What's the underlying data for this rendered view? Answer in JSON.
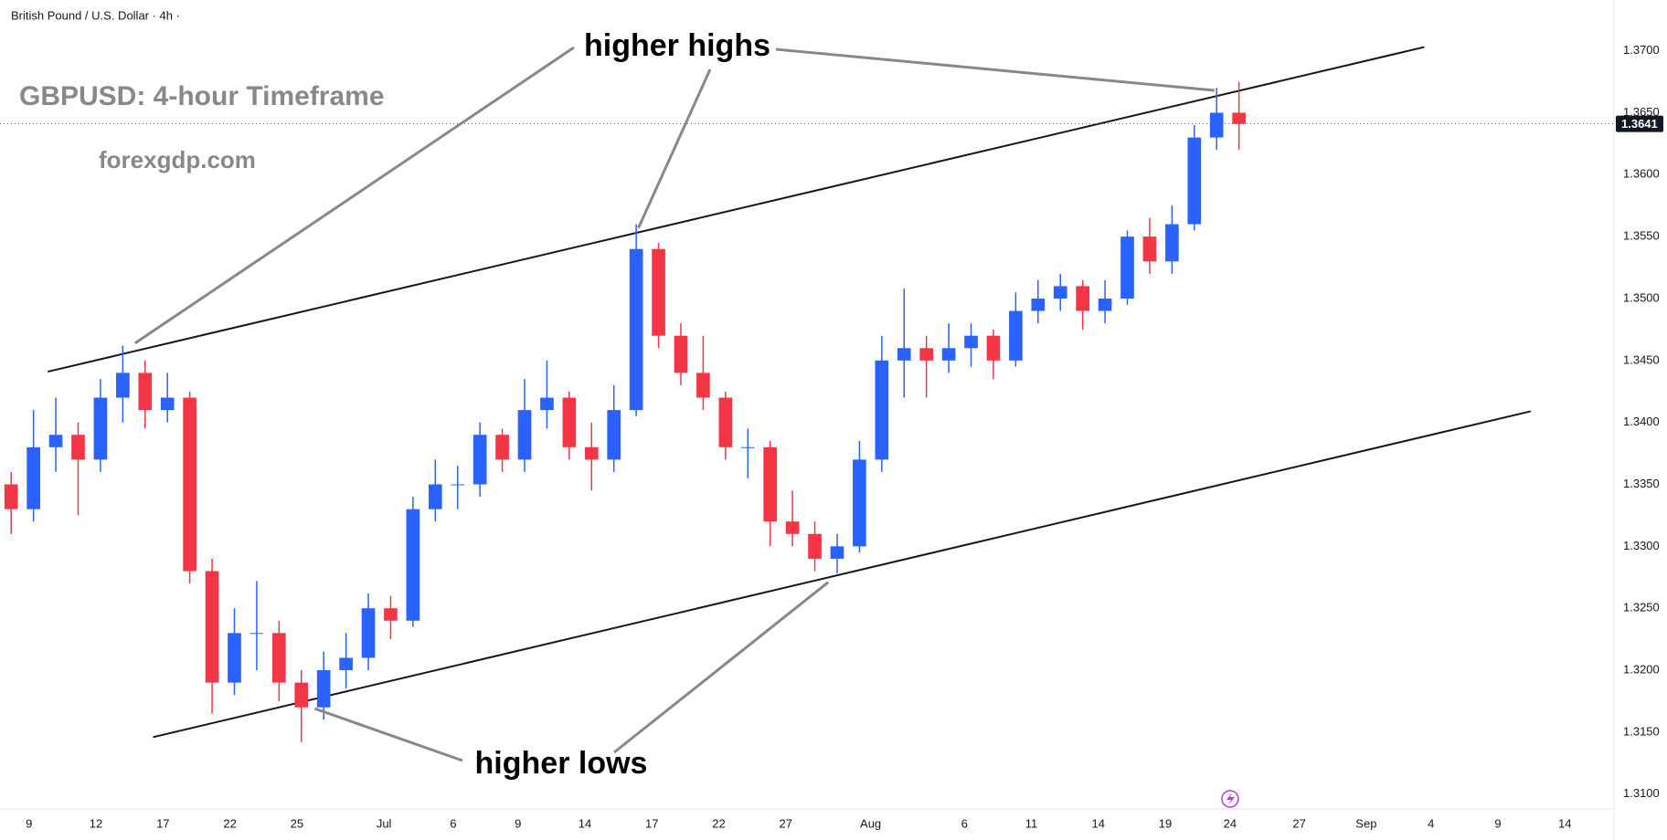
{
  "chart_data": {
    "type": "candlestick",
    "header": "British Pound / U.S. Dollar · 4h ·",
    "title": "GBPUSD: 4-hour Timeframe",
    "subtitle": "forexgdp.com",
    "up_color": "#2962ff",
    "down_color": "#f23645",
    "xlim": [
      0,
      72.3
    ],
    "ylim": [
      1.3088,
      1.3741
    ],
    "xticks": [
      {
        "value": 1.3,
        "label": "9"
      },
      {
        "value": 4.3,
        "label": "12"
      },
      {
        "value": 7.3,
        "label": "17"
      },
      {
        "value": 10.3,
        "label": "22"
      },
      {
        "value": 13.3,
        "label": "25"
      },
      {
        "value": 17.2,
        "label": "Jul"
      },
      {
        "value": 20.3,
        "label": "6"
      },
      {
        "value": 23.2,
        "label": "9"
      },
      {
        "value": 26.2,
        "label": "14"
      },
      {
        "value": 29.2,
        "label": "17"
      },
      {
        "value": 32.2,
        "label": "22"
      },
      {
        "value": 35.2,
        "label": "27"
      },
      {
        "value": 39,
        "label": "Aug"
      },
      {
        "value": 43.2,
        "label": "6"
      },
      {
        "value": 46.2,
        "label": "11"
      },
      {
        "value": 49.2,
        "label": "14"
      },
      {
        "value": 52.2,
        "label": "19"
      },
      {
        "value": 55.1,
        "label": "24"
      },
      {
        "value": 58.2,
        "label": "27"
      },
      {
        "value": 61.2,
        "label": "Sep"
      },
      {
        "value": 64.1,
        "label": "4"
      },
      {
        "value": 67.1,
        "label": "9"
      },
      {
        "value": 70.1,
        "label": "14"
      }
    ],
    "yticks": [
      {
        "value": 1.31,
        "label": "1.3100"
      },
      {
        "value": 1.315,
        "label": "1.3150"
      },
      {
        "value": 1.32,
        "label": "1.3200"
      },
      {
        "value": 1.325,
        "label": "1.3250"
      },
      {
        "value": 1.33,
        "label": "1.3300"
      },
      {
        "value": 1.335,
        "label": "1.3350"
      },
      {
        "value": 1.34,
        "label": "1.3400"
      },
      {
        "value": 1.345,
        "label": "1.3450"
      },
      {
        "value": 1.35,
        "label": "1.3500"
      },
      {
        "value": 1.355,
        "label": "1.3550"
      },
      {
        "value": 1.36,
        "label": "1.3600"
      },
      {
        "value": 1.365,
        "label": "1.3650"
      },
      {
        "value": 1.37,
        "label": "1.3700"
      }
    ],
    "grid": false,
    "x": [
      0.5,
      1.5,
      2.5,
      3.5,
      4.5,
      5.5,
      6.5,
      7.5,
      8.5,
      9.5,
      10.5,
      11.5,
      12.5,
      13.5,
      14.5,
      15.5,
      16.5,
      17.5,
      18.5,
      19.5,
      20.5,
      21.5,
      22.5,
      23.5,
      24.5,
      25.5,
      26.5,
      27.5,
      28.5,
      29.5,
      30.5,
      31.5,
      32.5,
      33.5,
      34.5,
      35.5,
      36.5,
      37.5,
      38.5,
      39.5,
      40.5,
      41.5,
      42.5,
      43.5,
      44.5,
      45.5,
      46.5,
      47.5,
      48.5,
      49.5,
      50.5,
      51.5,
      52.5,
      53.5,
      54.5,
      55.5
    ],
    "open": [
      1.335,
      1.333,
      1.338,
      1.339,
      1.337,
      1.342,
      1.344,
      1.341,
      1.342,
      1.328,
      1.319,
      1.323,
      1.323,
      1.319,
      1.317,
      1.32,
      1.321,
      1.325,
      1.324,
      1.333,
      1.335,
      1.335,
      1.339,
      1.337,
      1.341,
      1.342,
      1.338,
      1.337,
      1.341,
      1.354,
      1.347,
      1.344,
      1.342,
      1.338,
      1.338,
      1.332,
      1.331,
      1.329,
      1.33,
      1.337,
      1.345,
      1.346,
      1.345,
      1.346,
      1.347,
      1.345,
      1.349,
      1.35,
      1.351,
      1.349,
      1.35,
      1.355,
      1.353,
      1.356,
      1.363,
      1.365
    ],
    "high": [
      1.336,
      1.341,
      1.342,
      1.34,
      1.3435,
      1.3462,
      1.345,
      1.344,
      1.3425,
      1.329,
      1.325,
      1.3272,
      1.324,
      1.32,
      1.3215,
      1.323,
      1.3262,
      1.326,
      1.334,
      1.337,
      1.3365,
      1.34,
      1.3395,
      1.3435,
      1.345,
      1.3425,
      1.34,
      1.343,
      1.356,
      1.3545,
      1.348,
      1.347,
      1.3425,
      1.3395,
      1.3385,
      1.3345,
      1.332,
      1.331,
      1.3385,
      1.347,
      1.3508,
      1.347,
      1.348,
      1.348,
      1.3475,
      1.3505,
      1.3515,
      1.352,
      1.3515,
      1.3515,
      1.3555,
      1.3565,
      1.3575,
      1.364,
      1.367,
      1.3675
    ],
    "low": [
      1.331,
      1.332,
      1.336,
      1.3325,
      1.336,
      1.34,
      1.3395,
      1.34,
      1.327,
      1.3165,
      1.318,
      1.32,
      1.3175,
      1.3142,
      1.316,
      1.3185,
      1.32,
      1.3225,
      1.3235,
      1.332,
      1.333,
      1.334,
      1.336,
      1.336,
      1.3395,
      1.337,
      1.3345,
      1.336,
      1.3405,
      1.346,
      1.343,
      1.341,
      1.337,
      1.3355,
      1.33,
      1.33,
      1.328,
      1.3278,
      1.3295,
      1.336,
      1.342,
      1.342,
      1.344,
      1.3445,
      1.3435,
      1.3445,
      1.348,
      1.349,
      1.3475,
      1.348,
      1.3495,
      1.352,
      1.352,
      1.3555,
      1.362,
      1.362
    ],
    "close": [
      1.333,
      1.338,
      1.339,
      1.337,
      1.342,
      1.344,
      1.341,
      1.342,
      1.328,
      1.319,
      1.323,
      1.323,
      1.319,
      1.317,
      1.32,
      1.321,
      1.325,
      1.324,
      1.333,
      1.335,
      1.335,
      1.339,
      1.337,
      1.341,
      1.342,
      1.338,
      1.337,
      1.341,
      1.354,
      1.347,
      1.344,
      1.342,
      1.338,
      1.338,
      1.332,
      1.331,
      1.329,
      1.33,
      1.337,
      1.345,
      1.346,
      1.345,
      1.346,
      1.347,
      1.345,
      1.349,
      1.35,
      1.351,
      1.349,
      1.35,
      1.355,
      1.353,
      1.356,
      1.363,
      1.365,
      1.3641
    ],
    "last_price": 1.3641,
    "trendlines": [
      {
        "x": [
          2.14,
          63.8
        ],
        "y": [
          1.3441,
          1.3703
        ],
        "color": "#131722"
      },
      {
        "x": [
          6.86,
          68.57
        ],
        "y": [
          1.3146,
          1.3409
        ],
        "color": "#131722"
      }
    ],
    "annotations": [
      {
        "text": "higher highs",
        "points": [
          [
            6.05,
            1.3464
          ],
          [
            28.6,
            1.3557
          ],
          [
            54.4,
            1.3668
          ]
        ]
      },
      {
        "text": "higher lows",
        "points": [
          [
            14.1,
            1.3169
          ],
          [
            37.1,
            1.3271
          ]
        ]
      }
    ]
  }
}
